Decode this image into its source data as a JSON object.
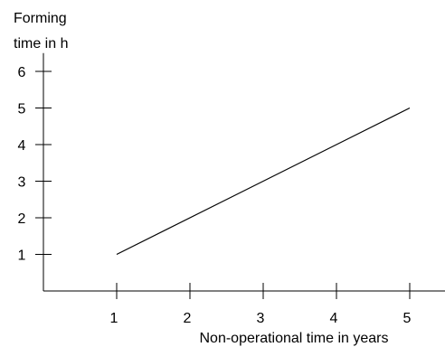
{
  "chart_data": {
    "type": "line",
    "ylabel_lines": [
      "Forming",
      "time in h"
    ],
    "xlabel": "Non-operational time in years",
    "x_ticks": [
      1,
      2,
      3,
      4,
      5
    ],
    "y_ticks": [
      1,
      2,
      3,
      4,
      5,
      6
    ],
    "xlim": [
      0,
      5.5
    ],
    "ylim": [
      0,
      6.5
    ],
    "grid": false,
    "series": [
      {
        "x": [
          1,
          5
        ],
        "y": [
          1,
          5
        ]
      }
    ]
  }
}
